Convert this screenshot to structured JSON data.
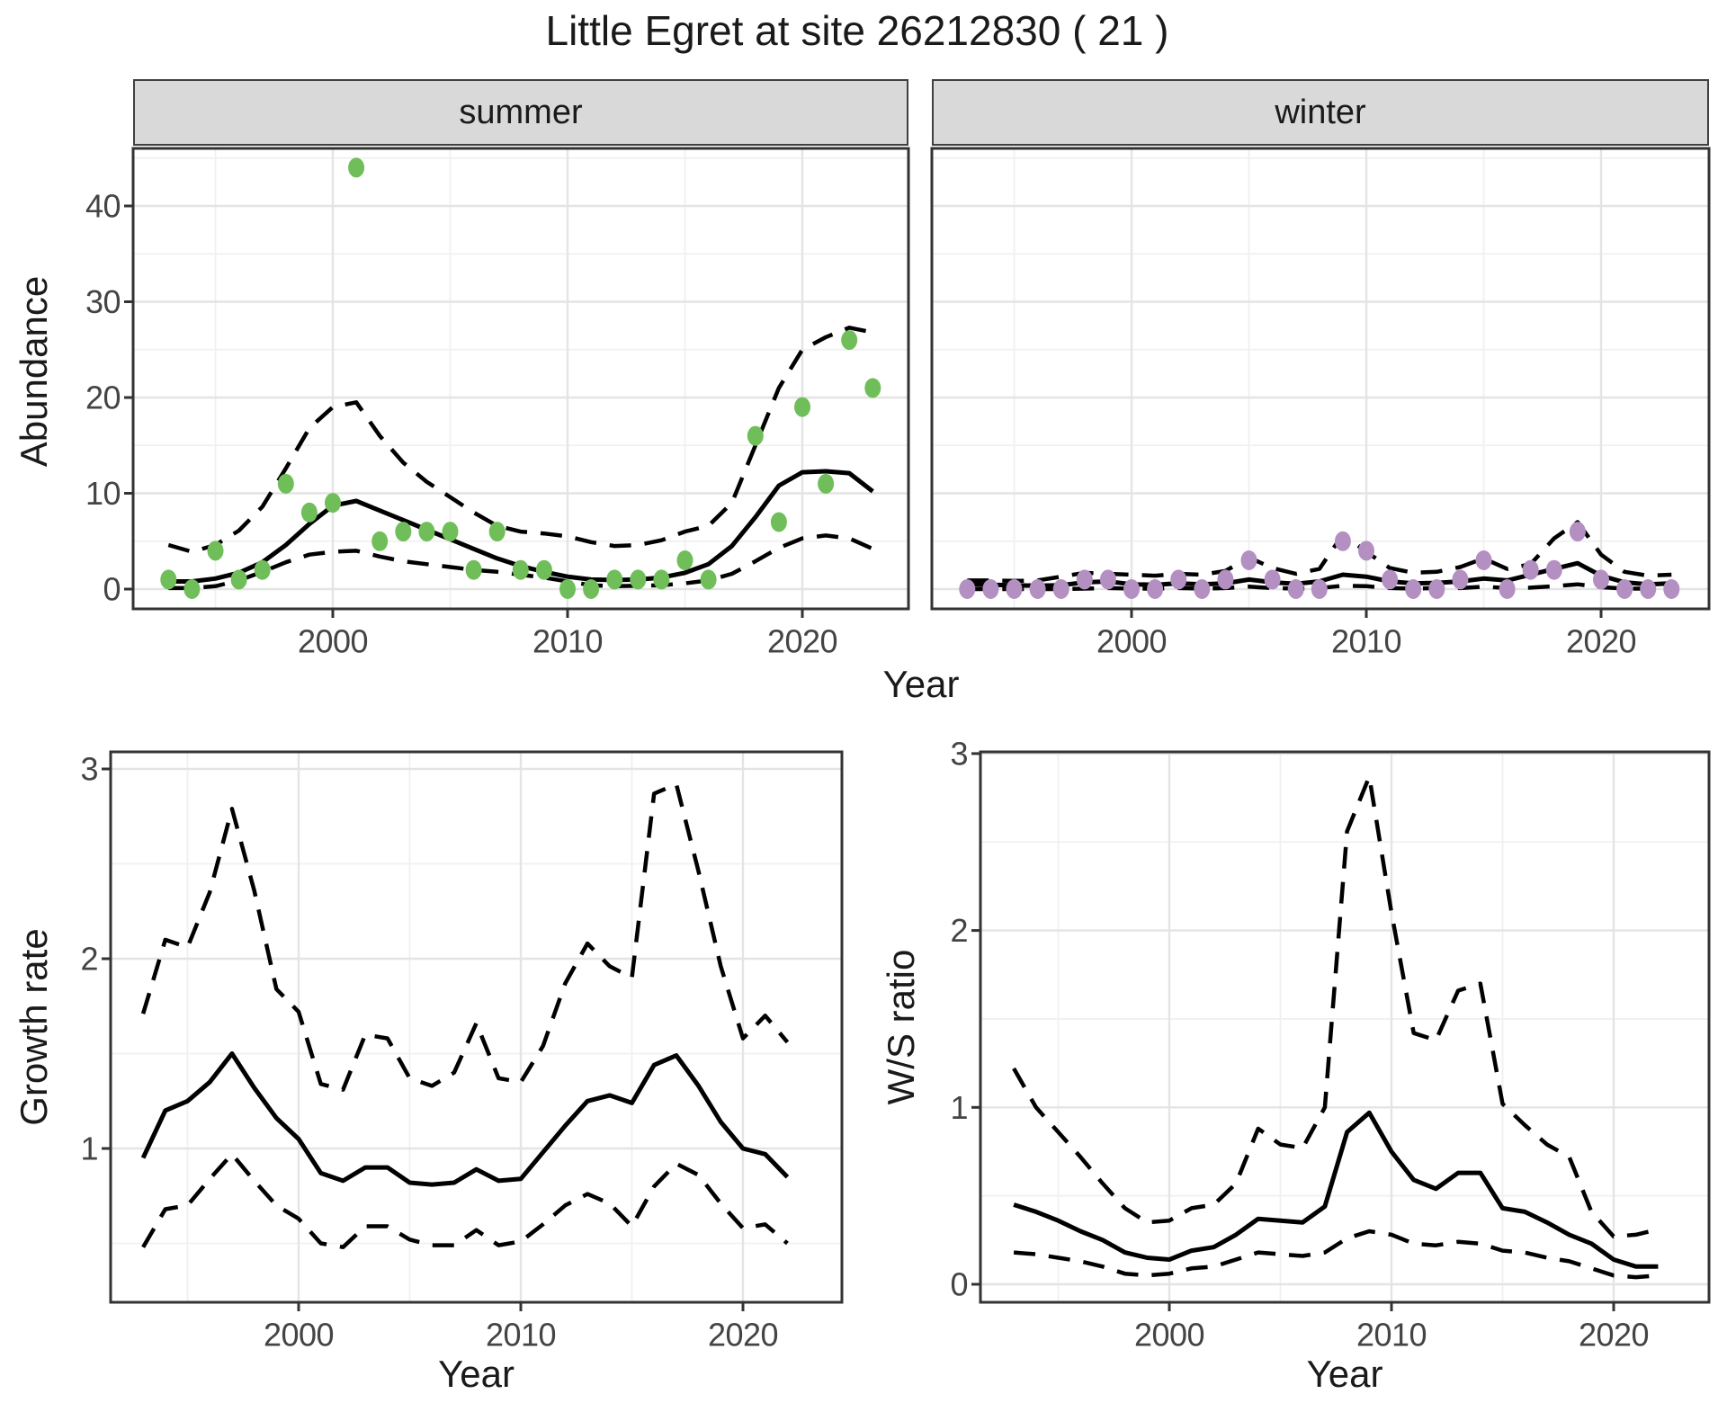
{
  "title": "Little Egret at site 26212830 ( 21 )",
  "facets": [
    {
      "label": "summer"
    },
    {
      "label": "winter"
    }
  ],
  "axes": {
    "abundance_label": "Abundance",
    "year_label": "Year",
    "growth_label": "Growth rate",
    "ws_label": "W/S ratio"
  },
  "colors": {
    "summer_point": "#70BE5A",
    "winter_point": "#B48FC2",
    "line": "#000000",
    "panel_border": "#333333",
    "grid_major": "#E4E4E4",
    "grid_minor": "#F0F0F0",
    "strip_bg": "#D9D9D9",
    "tick_text": "#444444"
  },
  "chart_data": [
    {
      "id": "abundance_summer",
      "type": "scatter",
      "facet": "summer",
      "xlabel": "Year",
      "ylabel": "Abundance",
      "x_ticks": [
        2000,
        2010,
        2020
      ],
      "y_ticks": [
        0,
        10,
        20,
        30,
        40
      ],
      "xlim": [
        1991.5,
        2024.5
      ],
      "ylim": [
        -2.1,
        46.0
      ],
      "x": [
        1993,
        1994,
        1995,
        1996,
        1997,
        1998,
        1999,
        2000,
        2001,
        2002,
        2003,
        2004,
        2005,
        2006,
        2007,
        2008,
        2009,
        2010,
        2011,
        2012,
        2013,
        2014,
        2015,
        2016,
        2017,
        2018,
        2019,
        2020,
        2021,
        2022,
        2023
      ],
      "points": [
        1,
        0,
        4,
        1,
        2,
        11,
        8,
        9,
        44,
        5,
        6,
        6,
        6,
        2,
        6,
        2,
        2,
        0,
        0,
        1,
        1,
        1,
        3,
        1,
        null,
        16,
        7,
        19,
        11,
        26,
        21
      ],
      "fit": [
        0.8,
        0.8,
        1.1,
        1.7,
        2.8,
        4.6,
        6.8,
        8.7,
        9.2,
        8.2,
        7.2,
        6.2,
        5.2,
        4.2,
        3.2,
        2.4,
        1.8,
        1.3,
        1.0,
        0.95,
        1.0,
        1.2,
        1.7,
        2.6,
        4.5,
        7.5,
        10.8,
        12.2,
        12.3,
        12.1,
        10.2
      ],
      "ci_upper": [
        4.6,
        3.9,
        4.6,
        6.1,
        8.6,
        12.6,
        16.8,
        19.0,
        19.5,
        16.0,
        13.2,
        11.2,
        9.6,
        8.0,
        6.6,
        6.0,
        5.8,
        5.5,
        4.9,
        4.5,
        4.6,
        5.1,
        6.0,
        6.6,
        9.0,
        15.0,
        21.0,
        25.0,
        26.3,
        27.3,
        26.8
      ],
      "ci_lower": [
        0.1,
        0.1,
        0.3,
        0.9,
        1.8,
        2.8,
        3.6,
        3.9,
        4.0,
        3.4,
        2.9,
        2.6,
        2.3,
        2.0,
        1.8,
        1.5,
        1.2,
        0.8,
        0.4,
        0.3,
        0.35,
        0.4,
        0.6,
        0.9,
        1.6,
        2.9,
        4.3,
        5.3,
        5.6,
        5.3,
        4.2
      ]
    },
    {
      "id": "abundance_winter",
      "type": "scatter",
      "facet": "winter",
      "xlabel": "Year",
      "ylabel": "Abundance",
      "x_ticks": [
        2000,
        2010,
        2020
      ],
      "y_ticks": [
        0,
        10,
        20,
        30,
        40
      ],
      "xlim": [
        1991.5,
        2024.5
      ],
      "ylim": [
        -2.1,
        46.0
      ],
      "x": [
        1993,
        1994,
        1995,
        1996,
        1997,
        1998,
        1999,
        2000,
        2001,
        2002,
        2003,
        2004,
        2005,
        2006,
        2007,
        2008,
        2009,
        2010,
        2011,
        2012,
        2013,
        2014,
        2015,
        2016,
        2017,
        2018,
        2019,
        2020,
        2021,
        2022,
        2023
      ],
      "points": [
        0,
        0,
        0,
        0,
        0,
        1,
        1,
        0,
        0,
        1,
        0,
        1,
        3,
        1,
        0,
        0,
        5,
        4,
        1,
        0,
        0,
        1,
        3,
        0,
        2,
        2,
        6,
        1,
        0,
        0,
        0
      ],
      "fit": [
        0.5,
        0.45,
        0.4,
        0.35,
        0.4,
        0.7,
        0.8,
        0.5,
        0.45,
        0.6,
        0.5,
        0.6,
        1.0,
        0.7,
        0.55,
        0.8,
        1.5,
        1.3,
        0.8,
        0.6,
        0.65,
        0.8,
        1.1,
        0.9,
        1.5,
        2.1,
        2.7,
        1.4,
        0.7,
        0.5,
        0.6
      ],
      "ci_upper": [
        0.9,
        0.9,
        0.85,
        0.9,
        1.3,
        1.7,
        1.6,
        1.5,
        1.4,
        1.6,
        1.5,
        1.9,
        3.3,
        2.2,
        1.6,
        2.1,
        5.7,
        3.9,
        2.2,
        1.7,
        1.8,
        2.3,
        3.2,
        2.1,
        2.6,
        5.3,
        7.0,
        3.6,
        1.8,
        1.4,
        1.5
      ],
      "ci_lower": [
        0,
        0,
        0,
        0,
        0,
        0.05,
        0.1,
        0.05,
        0.05,
        0.1,
        0.05,
        0.1,
        0.25,
        0.1,
        0.05,
        0.1,
        0.35,
        0.3,
        0.1,
        0.05,
        0.1,
        0.1,
        0.25,
        0.1,
        0.15,
        0.3,
        0.5,
        0.2,
        0.05,
        0.05,
        0.05
      ]
    },
    {
      "id": "growth_rate",
      "type": "line",
      "xlabel": "Year",
      "ylabel": "Growth rate",
      "x_ticks": [
        2000,
        2010,
        2020
      ],
      "y_ticks": [
        1,
        2,
        3
      ],
      "xlim": [
        1991.55,
        2023.45
      ],
      "ylim": [
        0.19,
        3.09
      ],
      "x": [
        1993,
        1994,
        1995,
        1996,
        1997,
        1998,
        1999,
        2000,
        2001,
        2002,
        2003,
        2004,
        2005,
        2006,
        2007,
        2008,
        2009,
        2010,
        2011,
        2012,
        2013,
        2014,
        2015,
        2016,
        2017,
        2018,
        2019,
        2020,
        2021,
        2022
      ],
      "fit": [
        0.95,
        1.2,
        1.25,
        1.35,
        1.5,
        1.32,
        1.16,
        1.05,
        0.87,
        0.83,
        0.9,
        0.9,
        0.82,
        0.81,
        0.82,
        0.89,
        0.83,
        0.84,
        0.98,
        1.12,
        1.25,
        1.28,
        1.24,
        1.44,
        1.49,
        1.33,
        1.14,
        1.0,
        0.97,
        0.85
      ],
      "ci_upper": [
        1.71,
        2.1,
        2.06,
        2.35,
        2.79,
        2.36,
        1.84,
        1.72,
        1.34,
        1.31,
        1.6,
        1.58,
        1.37,
        1.33,
        1.4,
        1.66,
        1.37,
        1.35,
        1.54,
        1.87,
        2.08,
        1.96,
        1.9,
        2.87,
        2.92,
        2.46,
        1.96,
        1.58,
        1.7,
        1.56
      ],
      "ci_lower": [
        0.48,
        0.68,
        0.7,
        0.84,
        0.97,
        0.83,
        0.7,
        0.63,
        0.5,
        0.48,
        0.59,
        0.59,
        0.52,
        0.49,
        0.49,
        0.57,
        0.49,
        0.51,
        0.6,
        0.7,
        0.76,
        0.71,
        0.59,
        0.8,
        0.92,
        0.86,
        0.71,
        0.58,
        0.6,
        0.5
      ]
    },
    {
      "id": "ws_ratio",
      "type": "line",
      "xlabel": "Year",
      "ylabel": "W/S ratio",
      "x_ticks": [
        2000,
        2010,
        2020
      ],
      "y_ticks": [
        0,
        1,
        2,
        3
      ],
      "xlim": [
        1991.55,
        2023.45
      ],
      "ylim": [
        -0.1,
        3.11
      ],
      "x": [
        1993,
        1994,
        1995,
        1996,
        1997,
        1998,
        1999,
        2000,
        2001,
        2002,
        2003,
        2004,
        2005,
        2006,
        2007,
        2008,
        2009,
        2010,
        2011,
        2012,
        2013,
        2014,
        2015,
        2016,
        2017,
        2018,
        2019,
        2020,
        2021,
        2022
      ],
      "fit": [
        0.45,
        0.41,
        0.36,
        0.3,
        0.25,
        0.18,
        0.15,
        0.14,
        0.19,
        0.21,
        0.28,
        0.37,
        0.36,
        0.35,
        0.44,
        0.86,
        0.97,
        0.75,
        0.59,
        0.54,
        0.63,
        0.63,
        0.43,
        0.41,
        0.35,
        0.28,
        0.23,
        0.14,
        0.1,
        0.1
      ],
      "ci_upper": [
        1.22,
        1.0,
        0.86,
        0.72,
        0.57,
        0.43,
        0.35,
        0.36,
        0.43,
        0.45,
        0.57,
        0.88,
        0.79,
        0.77,
        1.0,
        2.56,
        2.87,
        2.1,
        1.42,
        1.38,
        1.66,
        1.7,
        1.02,
        0.9,
        0.79,
        0.72,
        0.41,
        0.27,
        0.28,
        0.31
      ],
      "ci_lower": [
        0.18,
        0.17,
        0.15,
        0.13,
        0.1,
        0.06,
        0.05,
        0.06,
        0.09,
        0.1,
        0.14,
        0.18,
        0.17,
        0.16,
        0.18,
        0.26,
        0.3,
        0.28,
        0.23,
        0.22,
        0.24,
        0.23,
        0.19,
        0.18,
        0.15,
        0.13,
        0.09,
        0.05,
        0.04,
        0.05
      ]
    }
  ]
}
